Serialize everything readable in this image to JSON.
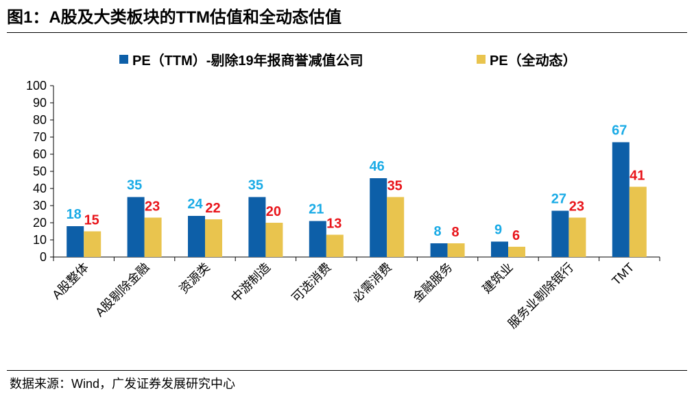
{
  "figure_title": "图1：A股及大类板块的TTM估值和全动态估值",
  "source": "数据来源：Wind，广发证券发展研究中心",
  "colors": {
    "series1": "#0D5FA8",
    "series2": "#E9C44E",
    "label1": "#1AABE6",
    "label2": "#E8141A"
  },
  "chart_data": {
    "type": "bar",
    "title": "",
    "xlabel": "",
    "ylabel": "",
    "ylim": [
      0,
      100
    ],
    "yticks": [
      "0",
      "10",
      "20",
      "30",
      "40",
      "50",
      "60",
      "70",
      "80",
      "90",
      "100"
    ],
    "grid": false,
    "legend": "top",
    "categories": [
      "A股整体",
      "A股剔除金融",
      "资源类",
      "中游制造",
      "可选消费",
      "必需消费",
      "金融服务",
      "建筑业",
      "服务业剔除银行",
      "TMT"
    ],
    "series": [
      {
        "name": "PE（TTM）-剔除19年报商誉减值公司",
        "values": [
          18,
          35,
          24,
          35,
          21,
          46,
          8,
          9,
          27,
          67
        ],
        "labels": [
          "18",
          "35",
          "24",
          "35",
          "21",
          "46",
          "8",
          "9",
          "27",
          "67"
        ]
      },
      {
        "name": "PE（全动态）",
        "values": [
          15,
          23,
          22,
          20,
          13,
          35,
          8,
          6,
          23,
          41
        ],
        "labels": [
          "15",
          "23",
          "22",
          "20",
          "13",
          "35",
          "8",
          "6",
          "23",
          "41"
        ]
      }
    ]
  }
}
